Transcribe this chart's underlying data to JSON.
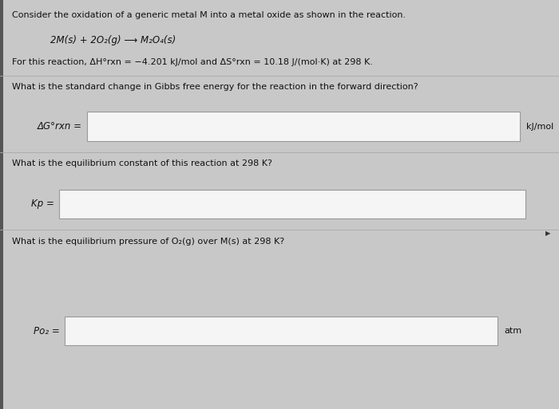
{
  "bg_color": "#c8c8c8",
  "panel_color": "#e8e8e8",
  "text_color": "#111111",
  "title_line": "Consider the oxidation of a generic metal M into a metal oxide as shown in the reaction.",
  "reaction_line": "2M(s) + 2O₂(g) ⟶ M₂O₄(s)",
  "given_line": "For this reaction, ΔH°rxn = −4.201 kJ/mol and ΔS°rxn = 10.18 J/(mol·K) at 298 K.",
  "q1": "What is the standard change in Gibbs free energy for the reaction in the forward direction?",
  "label1": "ΔG°rxn =",
  "unit1": "kJ/mol",
  "q2": "What is the equilibrium constant of this reaction at 298 K?",
  "label2": "Kp =",
  "unit2": "",
  "q3": "What is the equilibrium pressure of O₂(g) over M(s) at 298 K?",
  "label3": "Po₂ =",
  "unit3": "atm",
  "box_fill": "#f5f5f5",
  "box_edge": "#999999",
  "font_size_main": 8.0,
  "font_size_reaction": 8.5,
  "font_size_label": 8.5,
  "left_bar_color": "#555555",
  "left_bar_width": 0.006
}
